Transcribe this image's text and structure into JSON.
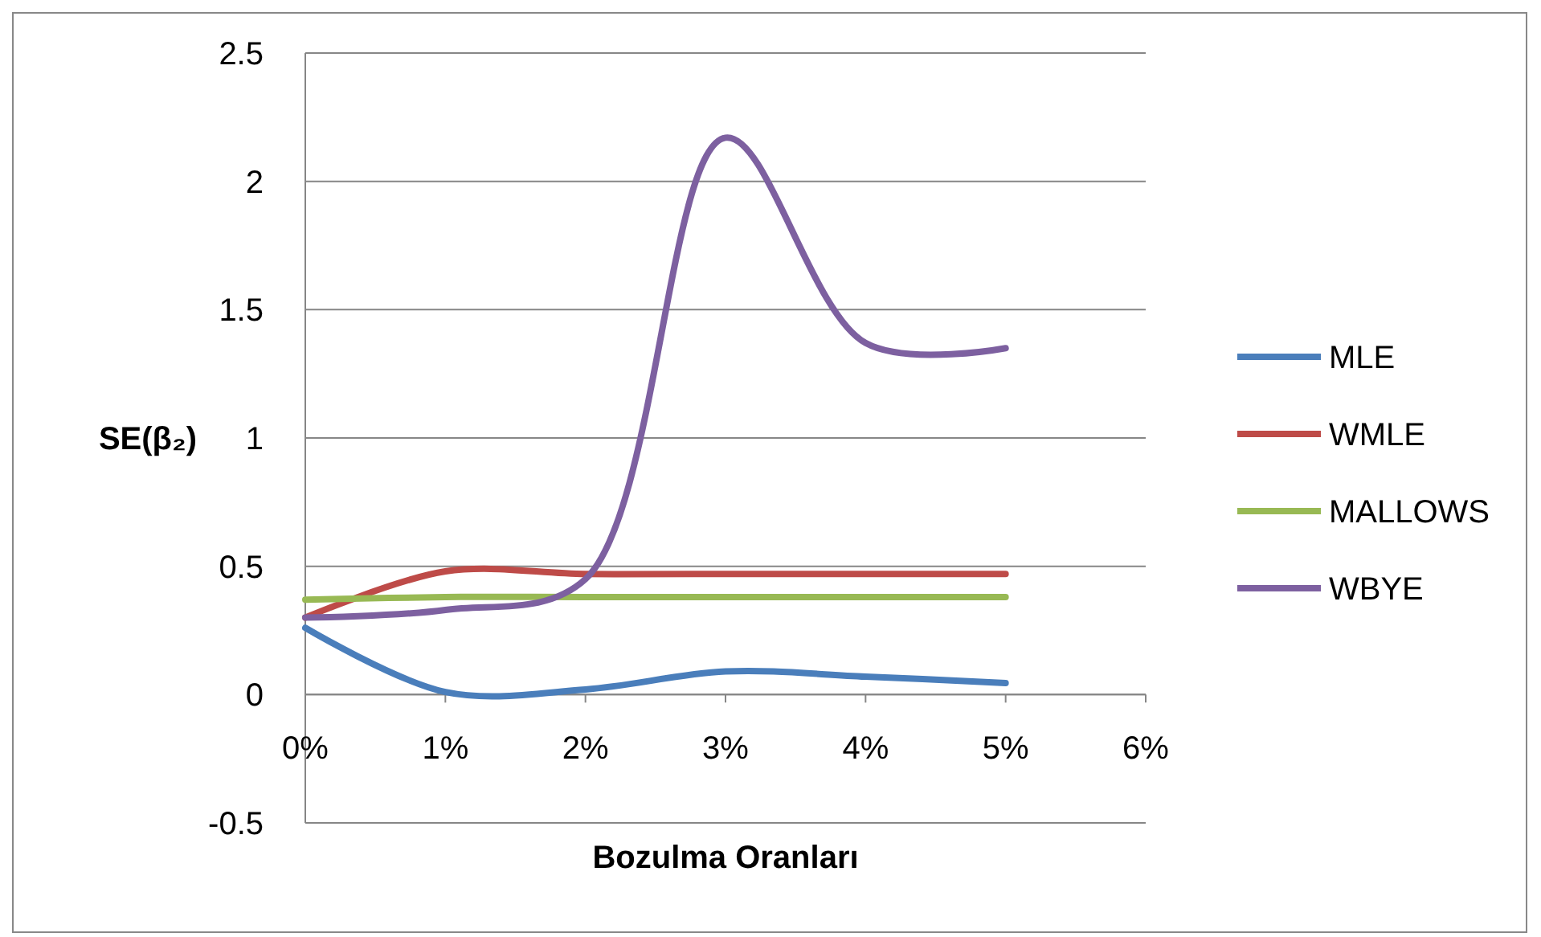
{
  "chart_data": {
    "type": "line",
    "xlabel": "Bozulma Oranları",
    "ylabel": "SE(β₂)",
    "x": [
      0,
      1,
      2,
      3,
      4,
      5
    ],
    "xlim": [
      0,
      6
    ],
    "xticks": [
      {
        "value": 0,
        "label": "0%"
      },
      {
        "value": 1,
        "label": "1%"
      },
      {
        "value": 2,
        "label": "2%"
      },
      {
        "value": 3,
        "label": "3%"
      },
      {
        "value": 4,
        "label": "4%"
      },
      {
        "value": 5,
        "label": "5%"
      },
      {
        "value": 6,
        "label": "6%"
      }
    ],
    "ylim": [
      -0.5,
      2.5
    ],
    "yticks": [
      -0.5,
      0,
      0.5,
      1,
      1.5,
      2,
      2.5
    ],
    "grid": "y",
    "legend": "right",
    "marker": "none",
    "line_style": "solid",
    "series": [
      {
        "name": "MLE",
        "color": "#4a7ebb",
        "values": [
          0.26,
          0.01,
          0.02,
          0.09,
          0.07,
          0.045
        ]
      },
      {
        "name": "WMLE",
        "color": "#be4b48",
        "values": [
          0.3,
          0.48,
          0.47,
          0.47,
          0.47,
          0.47
        ]
      },
      {
        "name": "MALLOWS",
        "color": "#98b954",
        "values": [
          0.37,
          0.38,
          0.38,
          0.38,
          0.38,
          0.38
        ]
      },
      {
        "name": "WBYE",
        "color": "#7d60a0",
        "values": [
          0.3,
          0.33,
          0.45,
          2.17,
          1.37,
          1.35
        ]
      }
    ]
  }
}
